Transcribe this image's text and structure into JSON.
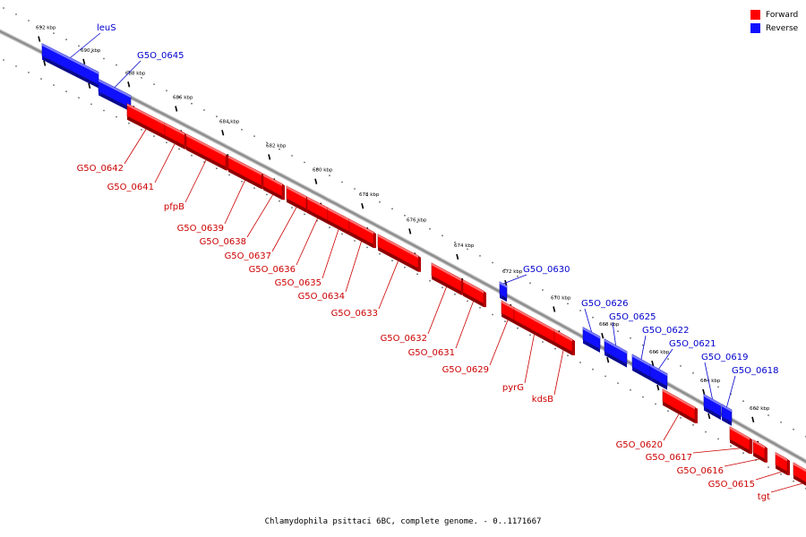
{
  "legend": {
    "forward_label": "Forward",
    "reverse_label": "Reverse",
    "forward_color": "#ff0000",
    "reverse_color": "#1010ff"
  },
  "colors": {
    "backbone": "#8a8a8a",
    "forward": "#ff0000",
    "reverse": "#1010ff",
    "forward_text": "#cc0000",
    "reverse_text": "#0000cc"
  },
  "caption": "Chlamydophila psittaci 6BC, complete genome. - 0..1171667",
  "ticks": [
    "692 kbp",
    "690 kbp",
    "688 kbp",
    "686 kbp",
    "684 kbp",
    "682 kbp",
    "680 kbp",
    "678 kbp",
    "676 kbp",
    "674 kbp",
    "672 kbp",
    "670 kbp",
    "668 kbp",
    "666 kbp",
    "664 kbp",
    "662 kbp"
  ],
  "genes": [
    {
      "name": "leuS",
      "strand": "reverse"
    },
    {
      "name": "G5O_0645",
      "strand": "reverse"
    },
    {
      "name": "G5O_0642",
      "strand": "forward"
    },
    {
      "name": "G5O_0641",
      "strand": "forward"
    },
    {
      "name": "pfpB",
      "strand": "forward"
    },
    {
      "name": "G5O_0639",
      "strand": "forward"
    },
    {
      "name": "G5O_0638",
      "strand": "forward"
    },
    {
      "name": "G5O_0637",
      "strand": "forward"
    },
    {
      "name": "G5O_0636",
      "strand": "forward"
    },
    {
      "name": "G5O_0635",
      "strand": "forward"
    },
    {
      "name": "G5O_0634",
      "strand": "forward"
    },
    {
      "name": "G5O_0633",
      "strand": "forward"
    },
    {
      "name": "G5O_0632",
      "strand": "forward"
    },
    {
      "name": "G5O_0631",
      "strand": "forward"
    },
    {
      "name": "G5O_0630",
      "strand": "reverse"
    },
    {
      "name": "G5O_0629",
      "strand": "forward"
    },
    {
      "name": "pyrG",
      "strand": "forward"
    },
    {
      "name": "kdsB",
      "strand": "forward"
    },
    {
      "name": "G5O_0626",
      "strand": "reverse"
    },
    {
      "name": "G5O_0625",
      "strand": "reverse"
    },
    {
      "name": "G5O_0622",
      "strand": "reverse"
    },
    {
      "name": "G5O_0621",
      "strand": "reverse"
    },
    {
      "name": "G5O_0619",
      "strand": "reverse"
    },
    {
      "name": "G5O_0618",
      "strand": "reverse"
    },
    {
      "name": "G5O_0620",
      "strand": "forward"
    },
    {
      "name": "G5O_0617",
      "strand": "forward"
    },
    {
      "name": "G5O_0616",
      "strand": "forward"
    },
    {
      "name": "G5O_0615",
      "strand": "forward"
    },
    {
      "name": "tgt",
      "strand": "forward"
    }
  ]
}
